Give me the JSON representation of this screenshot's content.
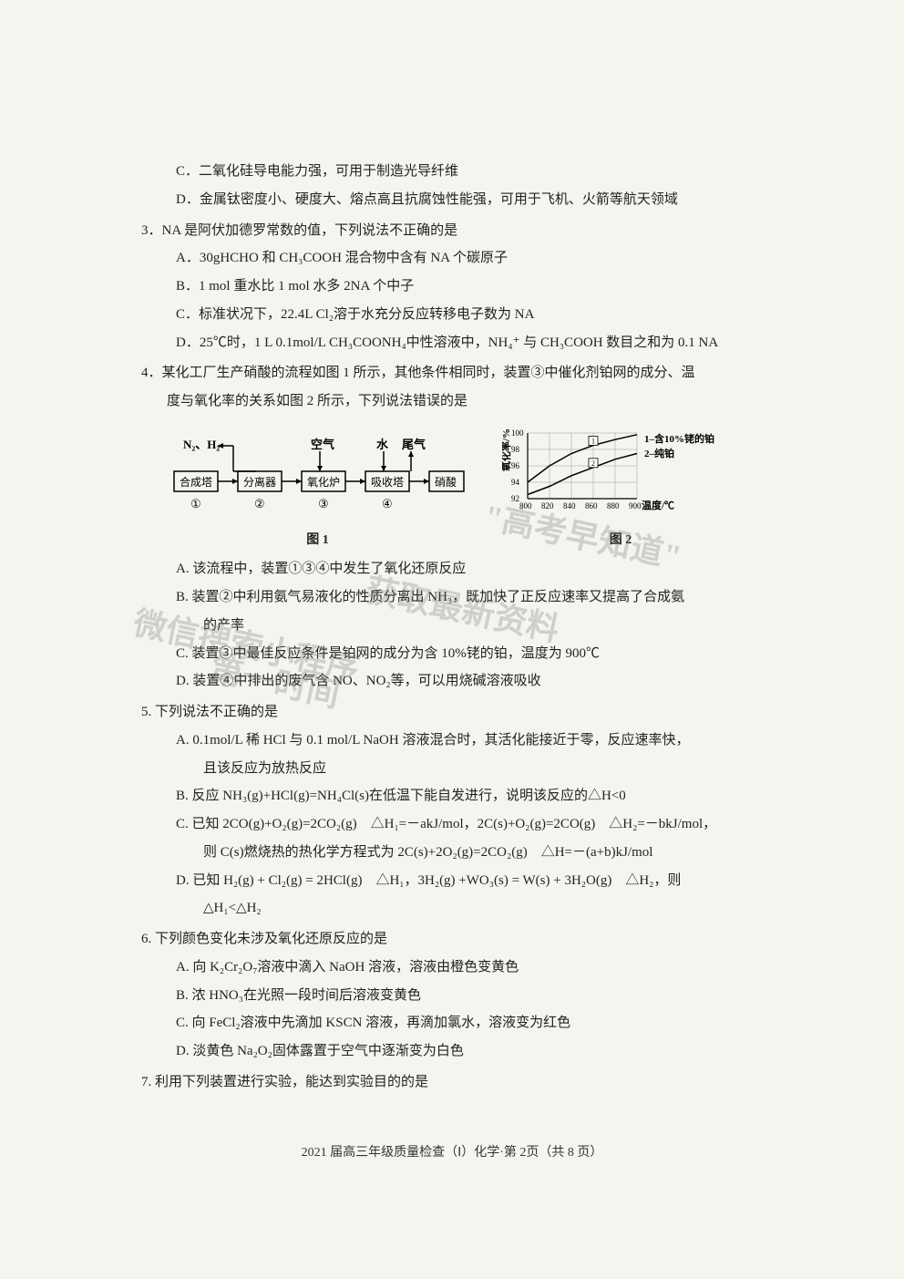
{
  "q2_options": {
    "C": "C．二氧化硅导电能力强，可用于制造光导纤维",
    "D": "D．金属钛密度小、硬度大、熔点高且抗腐蚀性能强，可用于飞机、火箭等航天领域"
  },
  "q3": {
    "stem": "3．NA 是阿伏加德罗常数的值，下列说法不正确的是",
    "A": "A．30gHCHO 和 CH₃COOH 混合物中含有 NA 个碳原子",
    "B": "B．1 mol 重水比 1 mol  水多 2NA 个中子",
    "C": "C．标准状况下，22.4L Cl₂溶于水充分反应转移电子数为 NA",
    "D": "D．25℃时，1 L 0.1mol/L CH₃COONH₄中性溶液中，NH₄⁺ 与 CH₃COOH 数目之和为 0.1 NA"
  },
  "q4": {
    "stem1": "4．某化工厂生产硝酸的流程如图 1 所示，其他条件相同时，装置③中催化剂铂网的成分、温",
    "stem2": "度与氧化率的关系如图 2 所示，下列说法错误的是",
    "A": "A. 该流程中，装置①③④中发生了氧化还原反应",
    "B1": "B. 装置②中利用氨气易液化的性质分离出 NH₃，既加快了正反应速率又提高了合成氨",
    "B2": "的产率",
    "C": "C. 装置③中最佳反应条件是铂网的成分为含 10%铑的铂，温度为 900℃",
    "D": "D. 装置④中排出的废气含 NO、NO₂等，可以用烧碱溶液吸收"
  },
  "q5": {
    "stem": "5. 下列说法不正确的是",
    "A1": "A. 0.1mol/L 稀 HCl 与 0.1 mol/L NaOH 溶液混合时，其活化能接近于零，反应速率快，",
    "A2": "且该反应为放热反应",
    "B": "B. 反应 NH₃(g)+HCl(g)=NH₄Cl(s)在低温下能自发进行，说明该反应的△H<0",
    "C1": "C. 已知 2CO(g)+O₂(g)=2CO₂(g)　△H₁=－akJ/mol，2C(s)+O₂(g)=2CO(g)　△H₂=－bkJ/mol，",
    "C2": "则 C(s)燃烧热的热化学方程式为 2C(s)+2O₂(g)=2CO₂(g)　△H=－(a+b)kJ/mol",
    "D1": "D. 已知 H₂(g) + Cl₂(g) = 2HCl(g)　△H₁，3H₂(g) +WO₃(s) = W(s) + 3H₂O(g)　△H₂，则",
    "D2": "△H₁<△H₂"
  },
  "q6": {
    "stem": "6. 下列颜色变化未涉及氧化还原反应的是",
    "A": "A. 向 K₂Cr₂O₇溶液中滴入 NaOH 溶液，溶液由橙色变黄色",
    "B": "B. 浓 HNO₃在光照一段时间后溶液变黄色",
    "C": "C. 向 FeCl₂溶液中先滴加 KSCN 溶液，再滴加氯水，溶液变为红色",
    "D": "D. 淡黄色 Na₂O₂固体露置于空气中逐渐变为白色"
  },
  "q7": {
    "stem": "7. 利用下列装置进行实验，能达到实验目的的是"
  },
  "figure1": {
    "nodes": {
      "n2h2": "N₂、H₂",
      "air": "空气",
      "water": "水",
      "exhaust": "尾气",
      "box1": "合成塔",
      "box2": "分离器",
      "box3": "氧化炉",
      "box4": "吸收塔",
      "product": "硝酸",
      "num1": "①",
      "num2": "②",
      "num3": "③",
      "num4": "④"
    },
    "label": "图 1",
    "colors": {
      "line": "#000000",
      "text": "#000000",
      "bg": "#f5f5f0"
    }
  },
  "figure2": {
    "type": "line",
    "xlabel": "温度/℃",
    "ylabel": "氧化率/%",
    "xlim": [
      800,
      900
    ],
    "ylim": [
      92,
      100
    ],
    "xticks": [
      800,
      820,
      840,
      860,
      880,
      900
    ],
    "yticks": [
      92,
      94,
      96,
      98,
      100
    ],
    "series": [
      {
        "name": "1–含10%铑的铂",
        "x": [
          800,
          820,
          840,
          860,
          880,
          900
        ],
        "y": [
          94,
          96,
          97.5,
          98.5,
          99.2,
          99.8
        ],
        "color": "#000000",
        "label_pos": "1"
      },
      {
        "name": "2–纯铂",
        "x": [
          800,
          820,
          840,
          860,
          880,
          900
        ],
        "y": [
          92.5,
          93.5,
          94.8,
          95.8,
          96.8,
          97.5
        ],
        "color": "#000000",
        "label_pos": "2"
      }
    ],
    "label": "图 2",
    "grid_color": "#999999",
    "background_color": "#f5f5f0"
  },
  "watermarks": {
    "w1": "\"高考早知道\"",
    "w2": "获取最新资料",
    "w3": "微信搜索小程序",
    "w4": "第一时间"
  },
  "footer": "2021 届高三年级质量检查（Ⅰ）化学·第 2页（共 8 页）"
}
